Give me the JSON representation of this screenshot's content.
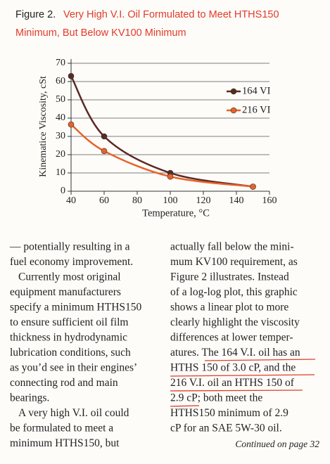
{
  "chart_data": {
    "type": "line",
    "figure_label": "Figure 2.",
    "title": [
      "Very High V.I. Oil Formulated to Meet HTHS150",
      "Minimum, But Below KV100 Minimum"
    ],
    "x_label": "Temperature, °C",
    "y_label": "Kinematice Viscosity, cSt",
    "x": [
      40,
      60,
      100,
      150
    ],
    "series": [
      {
        "name": "164 VI",
        "color": "#5a2a22",
        "values": [
          63,
          30,
          10,
          2.5
        ]
      },
      {
        "name": "216 VI",
        "color": "#e8622a",
        "values": [
          36.5,
          22,
          8,
          2.5
        ]
      }
    ],
    "xlim": [
      40,
      160
    ],
    "xticks": [
      40,
      60,
      80,
      100,
      120,
      140,
      160
    ],
    "ylim": [
      0,
      70
    ],
    "yticks": [
      0,
      10,
      20,
      30,
      40,
      50,
      60,
      70
    ],
    "grid": true,
    "legend": "upper right"
  },
  "article": {
    "left_column": [
      "— potentially resulting in a",
      "fuel economy improvement.",
      "Currently most original",
      "equipment manufacturers",
      "specify a minimum HTHS150",
      "to ensure sufficient oil film",
      "thickness in hydrodynamic",
      "lubrication conditions, such",
      "as you’d see in their engines’",
      "connecting rod and main",
      "bearings.",
      "A very high V.I. oil could",
      "be formulated to meet a",
      "minimum HTHS150, but"
    ],
    "right_column": [
      "actually fall below the mini-",
      "mum KV100 requirement, as",
      "Figure 2 illustrates. Instead",
      "of a log-log plot, this graphic",
      "shows a linear plot to more",
      "clearly highlight the viscosity",
      "differences at lower temper-",
      "atures. The 164 V.I. oil has an",
      "HTHS 150 of 3.0 cP, and the",
      "216 V.I. oil an HTHS 150 of",
      "2.9 cP; both meet the",
      "HTHS150 minimum of 2.9",
      "cP for an SAE 5W-30 oil."
    ],
    "continued": "Continued on page 32"
  }
}
